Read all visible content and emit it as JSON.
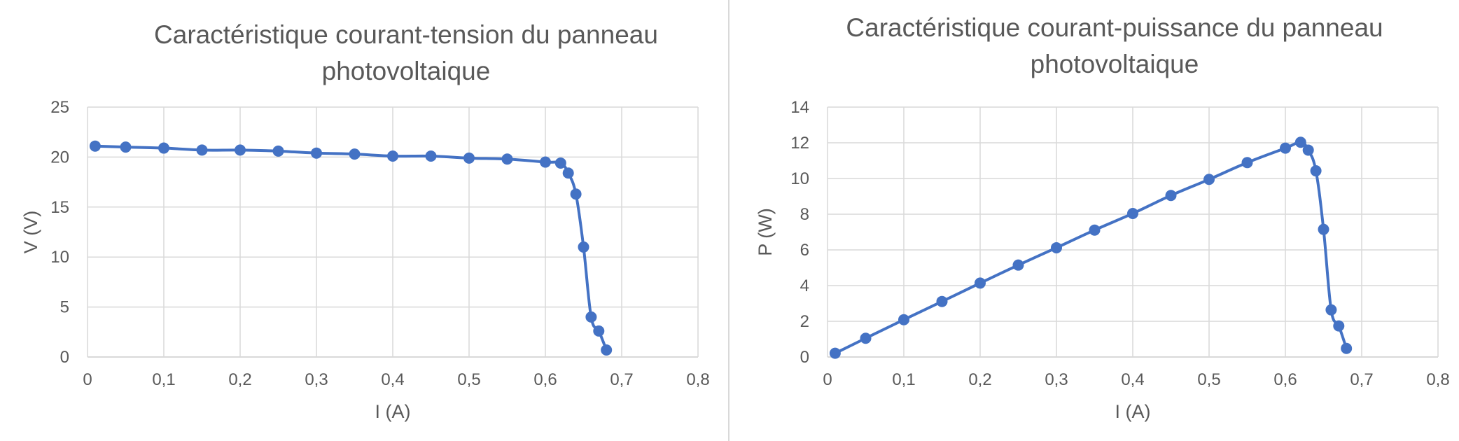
{
  "colors": {
    "series": "#4472c4",
    "gridline": "#d9d9d9",
    "text": "#595959",
    "separator": "#d9d9d9"
  },
  "chart_data": [
    {
      "type": "scatter",
      "title_lines": [
        "Caractéristique courant-tension du panneau",
        "photovoltaique"
      ],
      "xlabel": "I (A)",
      "ylabel": "V (V)",
      "xlim": [
        0,
        0.8
      ],
      "ylim": [
        0,
        25
      ],
      "x_ticks": [
        0,
        0.1,
        0.2,
        0.3,
        0.4,
        0.5,
        0.6,
        0.7,
        0.8
      ],
      "x_tick_labels": [
        "0",
        "0,1",
        "0,2",
        "0,3",
        "0,4",
        "0,5",
        "0,6",
        "0,7",
        "0,8"
      ],
      "y_ticks": [
        0,
        5,
        10,
        15,
        20,
        25
      ],
      "y_tick_labels": [
        "0",
        "5",
        "10",
        "15",
        "20",
        "25"
      ],
      "grid": true,
      "legend": false,
      "line": "smooth",
      "marker": "circle",
      "series": [
        {
          "x": [
            0.01,
            0.05,
            0.1,
            0.15,
            0.2,
            0.25,
            0.3,
            0.35,
            0.4,
            0.45,
            0.5,
            0.55,
            0.6,
            0.62,
            0.63,
            0.64,
            0.65,
            0.66,
            0.67,
            0.68
          ],
          "y": [
            21.1,
            21.0,
            20.9,
            20.7,
            20.7,
            20.6,
            20.4,
            20.3,
            20.1,
            20.1,
            19.9,
            19.8,
            19.5,
            19.4,
            18.4,
            16.3,
            11.0,
            4.0,
            2.6,
            0.7
          ]
        }
      ]
    },
    {
      "type": "scatter",
      "title_lines": [
        "Caractéristique courant-puissance du panneau",
        "photovoltaique"
      ],
      "xlabel": "I (A)",
      "ylabel": "P (W)",
      "xlim": [
        0,
        0.8
      ],
      "ylim": [
        0,
        14
      ],
      "x_ticks": [
        0,
        0.1,
        0.2,
        0.3,
        0.4,
        0.5,
        0.6,
        0.7,
        0.8
      ],
      "x_tick_labels": [
        "0",
        "0,1",
        "0,2",
        "0,3",
        "0,4",
        "0,5",
        "0,6",
        "0,7",
        "0,8"
      ],
      "y_ticks": [
        0,
        2,
        4,
        6,
        8,
        10,
        12,
        14
      ],
      "y_tick_labels": [
        "0",
        "2",
        "4",
        "6",
        "8",
        "10",
        "12",
        "14"
      ],
      "grid": true,
      "legend": false,
      "line": "smooth",
      "marker": "circle",
      "series": [
        {
          "x": [
            0.01,
            0.05,
            0.1,
            0.15,
            0.2,
            0.25,
            0.3,
            0.35,
            0.4,
            0.45,
            0.5,
            0.55,
            0.6,
            0.62,
            0.63,
            0.64,
            0.65,
            0.66,
            0.67,
            0.68
          ],
          "y": [
            0.21,
            1.05,
            2.09,
            3.11,
            4.14,
            5.15,
            6.12,
            7.11,
            8.04,
            9.05,
            9.95,
            10.89,
            11.7,
            12.03,
            11.59,
            10.43,
            7.15,
            2.64,
            1.74,
            0.48
          ]
        }
      ]
    }
  ]
}
